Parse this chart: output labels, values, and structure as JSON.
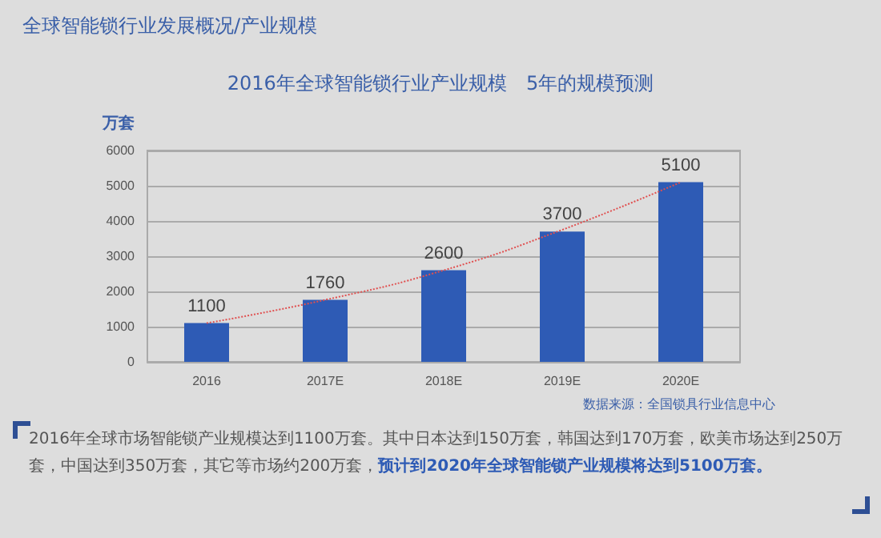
{
  "chart_data": {
    "type": "bar",
    "title": "全球智能锁行业发展概况/产业规模",
    "subtitle": "2016年全球智能锁行业产业规模　5年的规模预测",
    "ylabel": "万套",
    "categories": [
      "2016",
      "2017E",
      "2018E",
      "2019E",
      "2020E"
    ],
    "series": [
      {
        "color": "#2e5bb5",
        "values": [
          1100,
          1760,
          2600,
          3700,
          5100
        ],
        "value_labels": [
          "1100",
          "1760",
          "2600",
          "3700",
          "5100"
        ]
      },
      {
        "type": "line",
        "color": "#e05050",
        "line_style": "dotted",
        "marker": "none",
        "values": [
          1100,
          1760,
          2600,
          3750,
          5100
        ]
      }
    ],
    "ylim": [
      0,
      6000
    ],
    "yticks": [
      0,
      1000,
      2000,
      3000,
      4000,
      5000,
      6000
    ],
    "grid": "y",
    "annotations": [
      "数据来源：全国锁具行业信息中心",
      "2016年全球市场智能锁产业规模达到1100万套。其中日本达到150万套，韩国达到170万套，欧美市场达到250万套，中国达到350万套，其它等市场约200万套，",
      "预计到2020年全球智能锁产业规模将达到5100万套。"
    ]
  }
}
